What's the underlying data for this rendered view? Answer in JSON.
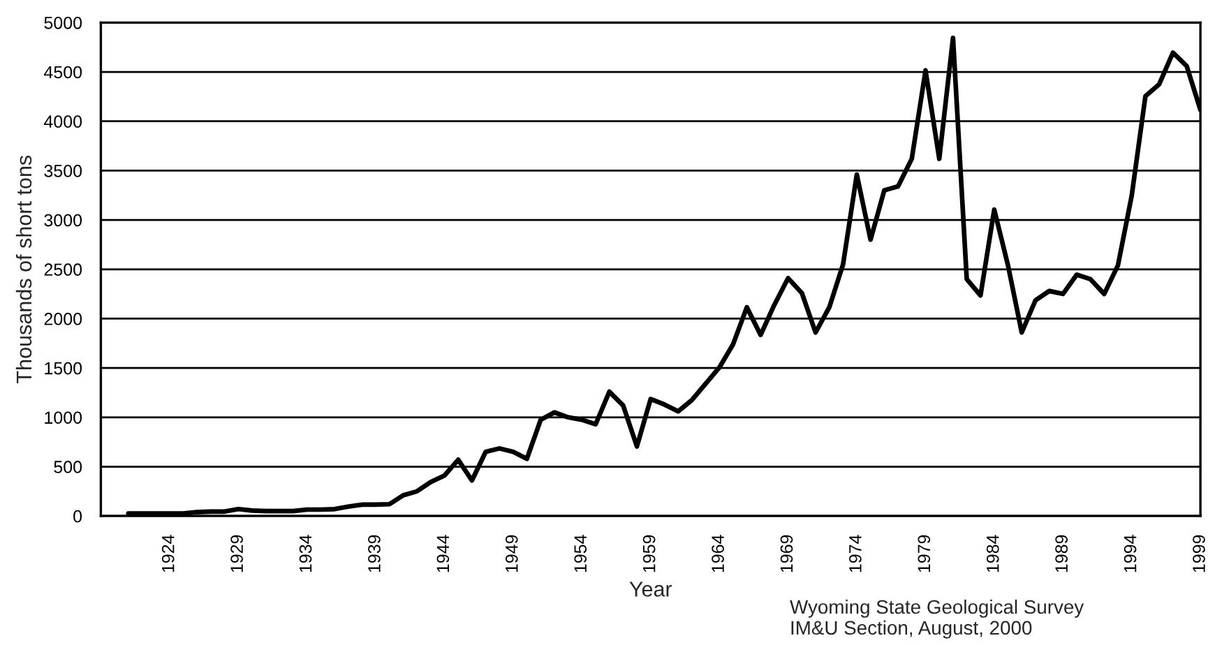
{
  "chart_data": {
    "type": "line",
    "xlabel": "Year",
    "ylabel": "Thousands of short tons",
    "annotations": [
      "Wyoming State Geological Survey\nIM&U Section, August, 2000"
    ],
    "x": [
      1921,
      1922,
      1923,
      1924,
      1925,
      1926,
      1927,
      1928,
      1929,
      1930,
      1931,
      1932,
      1933,
      1934,
      1935,
      1936,
      1937,
      1938,
      1939,
      1940,
      1941,
      1942,
      1943,
      1944,
      1945,
      1946,
      1947,
      1948,
      1949,
      1950,
      1951,
      1952,
      1953,
      1954,
      1955,
      1956,
      1957,
      1958,
      1959,
      1960,
      1961,
      1962,
      1963,
      1964,
      1965,
      1966,
      1967,
      1968,
      1969,
      1970,
      1971,
      1972,
      1973,
      1974,
      1975,
      1976,
      1977,
      1978,
      1979,
      1980,
      1981,
      1982,
      1983,
      1984,
      1985,
      1986,
      1987,
      1988,
      1989,
      1990,
      1991,
      1992,
      1993,
      1994,
      1995,
      1996,
      1997,
      1998,
      1999
    ],
    "series": [
      {
        "color": "#000000",
        "values": [
          25,
          25,
          25,
          25,
          25,
          40,
          45,
          45,
          70,
          55,
          50,
          50,
          50,
          65,
          65,
          70,
          95,
          115,
          115,
          120,
          210,
          250,
          345,
          410,
          570,
          360,
          650,
          685,
          650,
          580,
          975,
          1050,
          1000,
          975,
          930,
          1260,
          1120,
          705,
          1185,
          1130,
          1060,
          1175,
          1340,
          1505,
          1740,
          2115,
          1835,
          2140,
          2410,
          2260,
          1860,
          2115,
          2550,
          3460,
          2800,
          3300,
          3340,
          3620,
          4515,
          3620,
          4845,
          2400,
          2235,
          3105,
          2540,
          1860,
          2185,
          2280,
          2250,
          2445,
          2400,
          2250,
          2540,
          3245,
          4255,
          4375,
          4695,
          4560,
          4115
        ]
      }
    ],
    "xlim": [
      1919,
      1999
    ],
    "xticks": [
      1924,
      1929,
      1934,
      1939,
      1944,
      1949,
      1954,
      1959,
      1964,
      1969,
      1974,
      1979,
      1984,
      1989,
      1994,
      1999
    ],
    "ylim": [
      0,
      5000
    ],
    "yticks": [
      0,
      500,
      1000,
      1500,
      2000,
      2500,
      3000,
      3500,
      4000,
      4500,
      5000
    ],
    "grid": "y",
    "legend": false,
    "marker": "none",
    "line_style": "solid"
  }
}
